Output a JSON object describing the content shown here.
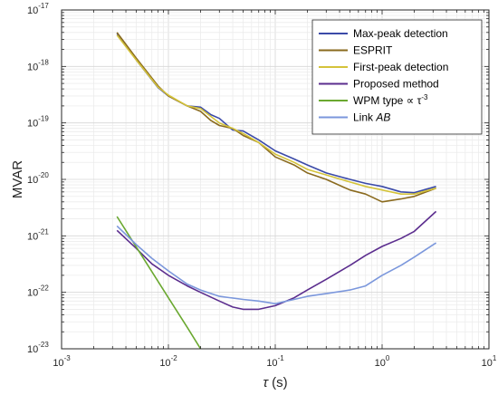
{
  "chart_data": {
    "type": "line",
    "xlabel": "τ (s)",
    "ylabel": "MVAR",
    "xscale": "log",
    "yscale": "log",
    "xlim": [
      0.001,
      10
    ],
    "ylim": [
      1e-23,
      1e-17
    ],
    "grid": true,
    "legend_position": "top-right",
    "x_ticks": [
      {
        "value": 0.001,
        "base": "10",
        "exp": "-3"
      },
      {
        "value": 0.01,
        "base": "10",
        "exp": "-2"
      },
      {
        "value": 0.1,
        "base": "10",
        "exp": "-1"
      },
      {
        "value": 1,
        "base": "10",
        "exp": "0"
      },
      {
        "value": 10,
        "base": "10",
        "exp": "1"
      }
    ],
    "y_ticks": [
      {
        "value": 1e-23,
        "base": "10",
        "exp": "-23"
      },
      {
        "value": 1e-22,
        "base": "10",
        "exp": "-22"
      },
      {
        "value": 1e-21,
        "base": "10",
        "exp": "-21"
      },
      {
        "value": 1e-20,
        "base": "10",
        "exp": "-20"
      },
      {
        "value": 1e-19,
        "base": "10",
        "exp": "-19"
      },
      {
        "value": 1e-18,
        "base": "10",
        "exp": "-18"
      },
      {
        "value": 1e-17,
        "base": "10",
        "exp": "-17"
      }
    ],
    "series": [
      {
        "name": "Max-peak detection",
        "color": "#3b4aa8",
        "points": [
          [
            0.0033,
            3.8e-18
          ],
          [
            0.005,
            1.3e-18
          ],
          [
            0.008,
            4.2e-19
          ],
          [
            0.01,
            3e-19
          ],
          [
            0.015,
            2e-19
          ],
          [
            0.02,
            1.9e-19
          ],
          [
            0.025,
            1.4e-19
          ],
          [
            0.03,
            1.2e-19
          ],
          [
            0.04,
            7.5e-20
          ],
          [
            0.05,
            7.2e-20
          ],
          [
            0.07,
            5e-20
          ],
          [
            0.1,
            3.2e-20
          ],
          [
            0.15,
            2.3e-20
          ],
          [
            0.2,
            1.8e-20
          ],
          [
            0.3,
            1.3e-20
          ],
          [
            0.5,
            1e-20
          ],
          [
            0.7,
            8.5e-21
          ],
          [
            1.0,
            7.5e-21
          ],
          [
            1.5,
            6e-21
          ],
          [
            2.0,
            5.8e-21
          ],
          [
            3.2,
            7.5e-21
          ]
        ]
      },
      {
        "name": "ESPRIT",
        "color": "#8a6a1e",
        "points": [
          [
            0.0033,
            4e-18
          ],
          [
            0.005,
            1.4e-18
          ],
          [
            0.008,
            4.5e-19
          ],
          [
            0.01,
            3e-19
          ],
          [
            0.015,
            2e-19
          ],
          [
            0.02,
            1.6e-19
          ],
          [
            0.025,
            1.1e-19
          ],
          [
            0.03,
            9e-20
          ],
          [
            0.04,
            8e-20
          ],
          [
            0.05,
            6e-20
          ],
          [
            0.07,
            4.5e-20
          ],
          [
            0.1,
            2.5e-20
          ],
          [
            0.15,
            1.8e-20
          ],
          [
            0.2,
            1.3e-20
          ],
          [
            0.3,
            1e-20
          ],
          [
            0.5,
            6.5e-21
          ],
          [
            0.7,
            5.5e-21
          ],
          [
            1.0,
            4e-21
          ],
          [
            1.5,
            4.5e-21
          ],
          [
            2.0,
            5e-21
          ],
          [
            3.2,
            7e-21
          ]
        ]
      },
      {
        "name": "First-peak detection",
        "color": "#d4c33a",
        "points": [
          [
            0.0033,
            3.6e-18
          ],
          [
            0.005,
            1.3e-18
          ],
          [
            0.008,
            4.3e-19
          ],
          [
            0.01,
            3.1e-19
          ],
          [
            0.015,
            2e-19
          ],
          [
            0.02,
            1.8e-19
          ],
          [
            0.025,
            1.3e-19
          ],
          [
            0.03,
            1e-19
          ],
          [
            0.04,
            8e-20
          ],
          [
            0.05,
            6.5e-20
          ],
          [
            0.07,
            4.5e-20
          ],
          [
            0.1,
            2.8e-20
          ],
          [
            0.15,
            2e-20
          ],
          [
            0.2,
            1.5e-20
          ],
          [
            0.3,
            1.2e-20
          ],
          [
            0.5,
            9e-21
          ],
          [
            0.7,
            7.5e-21
          ],
          [
            1.0,
            6.5e-21
          ],
          [
            1.5,
            5.5e-21
          ],
          [
            2.0,
            5.5e-21
          ],
          [
            3.2,
            7e-21
          ]
        ]
      },
      {
        "name": "Proposed method",
        "color": "#5b2d8e",
        "points": [
          [
            0.0033,
            1.25e-21
          ],
          [
            0.005,
            6e-22
          ],
          [
            0.007,
            3.2e-22
          ],
          [
            0.01,
            2e-22
          ],
          [
            0.015,
            1.3e-22
          ],
          [
            0.02,
            1e-22
          ],
          [
            0.03,
            7e-23
          ],
          [
            0.04,
            5.5e-23
          ],
          [
            0.05,
            5e-23
          ],
          [
            0.07,
            5e-23
          ],
          [
            0.1,
            5.8e-23
          ],
          [
            0.15,
            8e-23
          ],
          [
            0.2,
            1.1e-22
          ],
          [
            0.3,
            1.7e-22
          ],
          [
            0.5,
            3e-22
          ],
          [
            0.7,
            4.5e-22
          ],
          [
            1.0,
            6.5e-22
          ],
          [
            1.5,
            9e-22
          ],
          [
            2.0,
            1.2e-21
          ],
          [
            3.2,
            2.7e-21
          ]
        ]
      },
      {
        "name": "WPM type ∝ τ",
        "name_sup": "-3",
        "color": "#6aa830",
        "points": [
          [
            0.0033,
            2.2e-21
          ],
          [
            0.01,
            8e-23
          ],
          [
            0.015,
            2.4e-23
          ],
          [
            0.02,
            1e-23
          ]
        ]
      },
      {
        "name": "Link ",
        "name_italic": "AB",
        "color": "#7b97dc",
        "points": [
          [
            0.0033,
            1.5e-21
          ],
          [
            0.005,
            7e-22
          ],
          [
            0.007,
            4e-22
          ],
          [
            0.01,
            2.4e-22
          ],
          [
            0.015,
            1.4e-22
          ],
          [
            0.02,
            1.1e-22
          ],
          [
            0.03,
            8.5e-23
          ],
          [
            0.05,
            7.5e-23
          ],
          [
            0.07,
            7e-23
          ],
          [
            0.1,
            6.3e-23
          ],
          [
            0.15,
            7.5e-23
          ],
          [
            0.2,
            8.5e-23
          ],
          [
            0.3,
            9.5e-23
          ],
          [
            0.5,
            1.1e-22
          ],
          [
            0.7,
            1.3e-22
          ],
          [
            1.0,
            2e-22
          ],
          [
            1.5,
            3e-22
          ],
          [
            2.0,
            4.2e-22
          ],
          [
            3.2,
            7.5e-22
          ]
        ]
      }
    ]
  }
}
